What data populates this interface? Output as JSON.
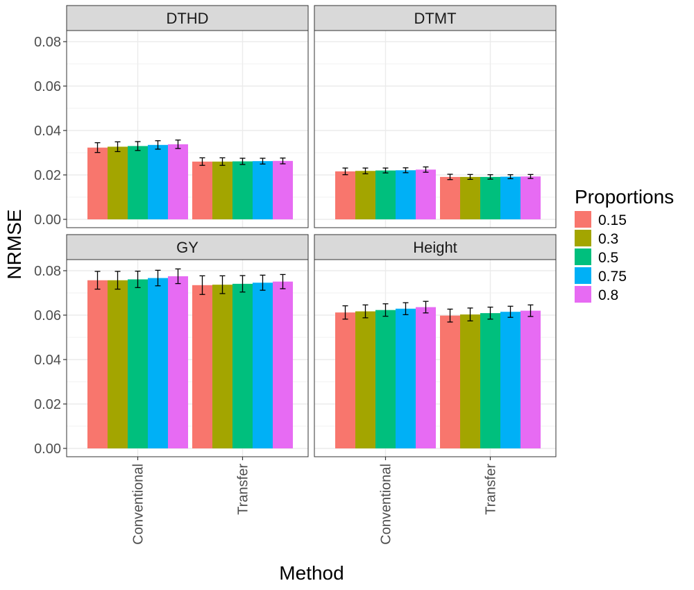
{
  "chart_data": {
    "type": "bar",
    "xlabel": "Method",
    "ylabel": "NRMSE",
    "ylim": [
      0,
      0.085
    ],
    "yticks": [
      "0.00",
      "0.02",
      "0.04",
      "0.06",
      "0.08"
    ],
    "ytick_values": [
      0,
      0.02,
      0.04,
      0.06,
      0.08
    ],
    "categories": [
      "Conventional",
      "Transfer"
    ],
    "legend": {
      "title": "Proportions",
      "placement": "right",
      "entries": [
        "0.15",
        "0.3",
        "0.5",
        "0.75",
        "0.8"
      ],
      "colors": [
        "#F8766D",
        "#A3A500",
        "#00BF7D",
        "#00B0F6",
        "#E76BF3"
      ]
    },
    "grid": true,
    "facets": [
      {
        "name": "DTHD",
        "series": [
          {
            "name": "0.15",
            "values": [
              0.0323,
              0.026
            ],
            "errors": [
              0.0022,
              0.0017
            ]
          },
          {
            "name": "0.3",
            "values": [
              0.0327,
              0.026
            ],
            "errors": [
              0.0022,
              0.0017
            ]
          },
          {
            "name": "0.5",
            "values": [
              0.033,
              0.0261
            ],
            "errors": [
              0.002,
              0.0014
            ]
          },
          {
            "name": "0.75",
            "values": [
              0.0335,
              0.0262
            ],
            "errors": [
              0.0019,
              0.0013
            ]
          },
          {
            "name": "0.8",
            "values": [
              0.0338,
              0.0263
            ],
            "errors": [
              0.0019,
              0.0013
            ]
          }
        ]
      },
      {
        "name": "DTMT",
        "series": [
          {
            "name": "0.15",
            "values": [
              0.0216,
              0.0191
            ],
            "errors": [
              0.0015,
              0.0012
            ]
          },
          {
            "name": "0.3",
            "values": [
              0.0218,
              0.0191
            ],
            "errors": [
              0.0013,
              0.0011
            ]
          },
          {
            "name": "0.5",
            "values": [
              0.022,
              0.0191
            ],
            "errors": [
              0.0011,
              0.001
            ]
          },
          {
            "name": "0.75",
            "values": [
              0.0221,
              0.0192
            ],
            "errors": [
              0.0011,
              0.0009
            ]
          },
          {
            "name": "0.8",
            "values": [
              0.0224,
              0.0193
            ],
            "errors": [
              0.0012,
              0.0009
            ]
          }
        ]
      },
      {
        "name": "GY",
        "series": [
          {
            "name": "0.15",
            "values": [
              0.0757,
              0.0735
            ],
            "errors": [
              0.004,
              0.0042
            ]
          },
          {
            "name": "0.3",
            "values": [
              0.0757,
              0.0737
            ],
            "errors": [
              0.004,
              0.004
            ]
          },
          {
            "name": "0.5",
            "values": [
              0.0761,
              0.0741
            ],
            "errors": [
              0.0037,
              0.0037
            ]
          },
          {
            "name": "0.75",
            "values": [
              0.0767,
              0.0746
            ],
            "errors": [
              0.0035,
              0.0034
            ]
          },
          {
            "name": "0.8",
            "values": [
              0.0775,
              0.0751
            ],
            "errors": [
              0.0033,
              0.0032
            ]
          }
        ]
      },
      {
        "name": "Height",
        "series": [
          {
            "name": "0.15",
            "values": [
              0.0612,
              0.0598
            ],
            "errors": [
              0.003,
              0.0029
            ]
          },
          {
            "name": "0.3",
            "values": [
              0.0617,
              0.0603
            ],
            "errors": [
              0.0029,
              0.0029
            ]
          },
          {
            "name": "0.5",
            "values": [
              0.0623,
              0.0609
            ],
            "errors": [
              0.0028,
              0.0027
            ]
          },
          {
            "name": "0.75",
            "values": [
              0.0629,
              0.0615
            ],
            "errors": [
              0.0027,
              0.0025
            ]
          },
          {
            "name": "0.8",
            "values": [
              0.0636,
              0.062
            ],
            "errors": [
              0.0026,
              0.0026
            ]
          }
        ]
      }
    ]
  }
}
